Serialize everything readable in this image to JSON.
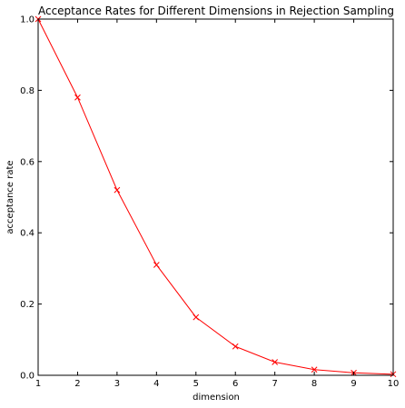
{
  "chart_data": {
    "type": "line",
    "title": "Acceptance Rates for Different Dimensions in Rejection Sampling",
    "xlabel": "dimension",
    "ylabel": "acceptance rate",
    "xlim": [
      1,
      10
    ],
    "ylim": [
      0.0,
      1.0
    ],
    "x_ticks": [
      1,
      2,
      3,
      4,
      5,
      6,
      7,
      8,
      9,
      10
    ],
    "y_ticks": [
      "0.0",
      "0.2",
      "0.4",
      "0.6",
      "0.8",
      "1.0"
    ],
    "grid": false,
    "series": [
      {
        "color": "#ff0000",
        "marker": "x",
        "x": [
          1,
          2,
          3,
          4,
          5,
          6,
          7,
          8,
          9,
          10
        ],
        "y": [
          1.0,
          0.78,
          0.52,
          0.31,
          0.163,
          0.081,
          0.037,
          0.016,
          0.007,
          0.003
        ]
      }
    ]
  }
}
